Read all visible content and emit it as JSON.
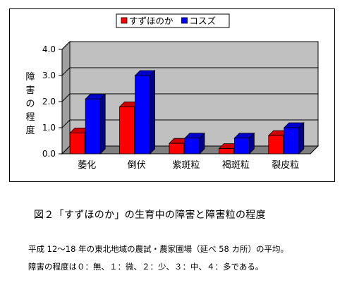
{
  "chart_data": {
    "type": "bar",
    "categories": [
      "萎化",
      "倒伏",
      "紫斑粒",
      "褐斑粒",
      "裂皮粒"
    ],
    "series": [
      {
        "name": "すずほのか",
        "values": [
          0.8,
          1.8,
          0.4,
          0.2,
          0.7
        ],
        "color": "#ff0000"
      },
      {
        "name": "コスズ",
        "values": [
          2.1,
          3.0,
          0.6,
          0.6,
          1.0
        ],
        "color": "#0000ff"
      }
    ],
    "yticks": [
      "0.0",
      "1.0",
      "2.0",
      "3.0",
      "4.0"
    ],
    "ylim": [
      0,
      4
    ],
    "ylabel": "障害の程度",
    "grid": true,
    "legend_position": "top"
  },
  "figure": {
    "caption": "図２「すずほのか」の生育中の障害と障害粒の程度",
    "notes": [
      "平成 12～18 年の東北地域の農試・農家圃場（延べ 58 カ所）の平均。",
      "障害の程度は０：無、１：微、２：少、３：中、４：多である。"
    ]
  }
}
